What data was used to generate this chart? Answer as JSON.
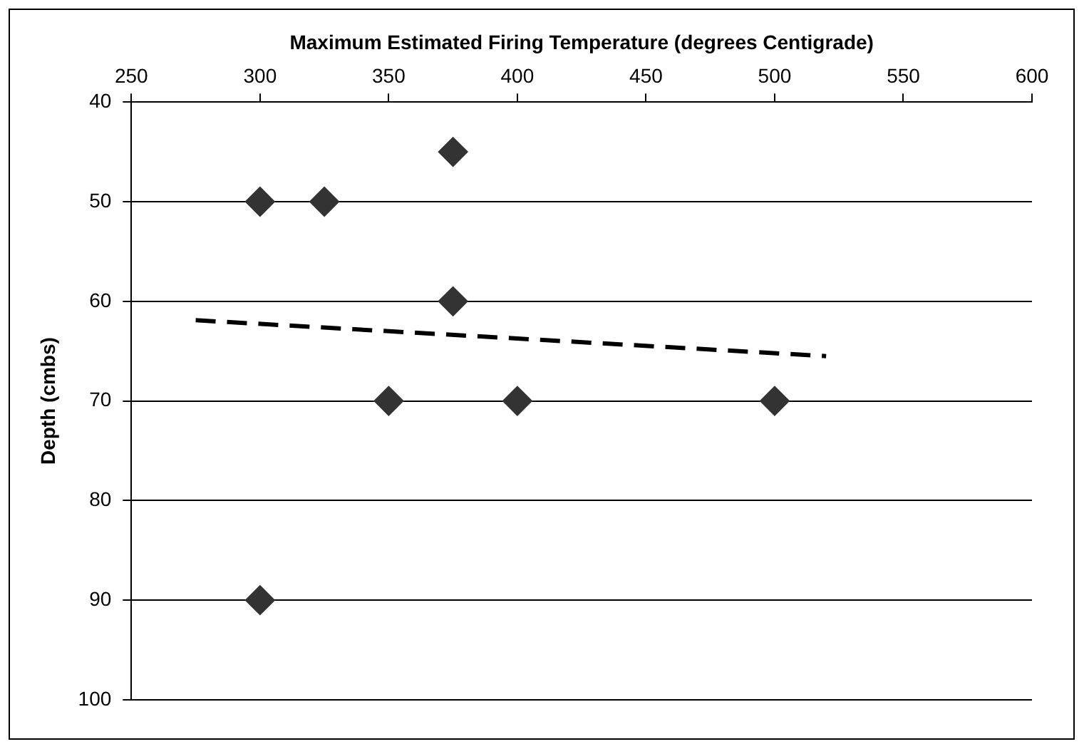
{
  "chart_data": {
    "type": "scatter",
    "xlabel": "Maximum Estimated Firing Temperature (degrees Centigrade)",
    "ylabel": "Depth (cmbs)",
    "xlim": [
      250,
      600
    ],
    "xticks": [
      250,
      300,
      350,
      400,
      450,
      500,
      550,
      600
    ],
    "ylim": [
      100,
      40
    ],
    "yticks": [
      40,
      50,
      60,
      70,
      80,
      90,
      100
    ],
    "grid": "y",
    "legend": false,
    "marker": "diamond",
    "series": [
      {
        "color": "#333333",
        "x": [
          300,
          325,
          375,
          300,
          375,
          350,
          400,
          500
        ],
        "values": [
          50,
          50,
          45,
          90,
          60,
          70,
          70,
          70
        ]
      },
      {
        "type": "line",
        "color": "#000000",
        "line_style": "dashed",
        "marker": "none",
        "x": [
          275,
          520
        ],
        "values": [
          61.9,
          65.5
        ]
      }
    ]
  }
}
